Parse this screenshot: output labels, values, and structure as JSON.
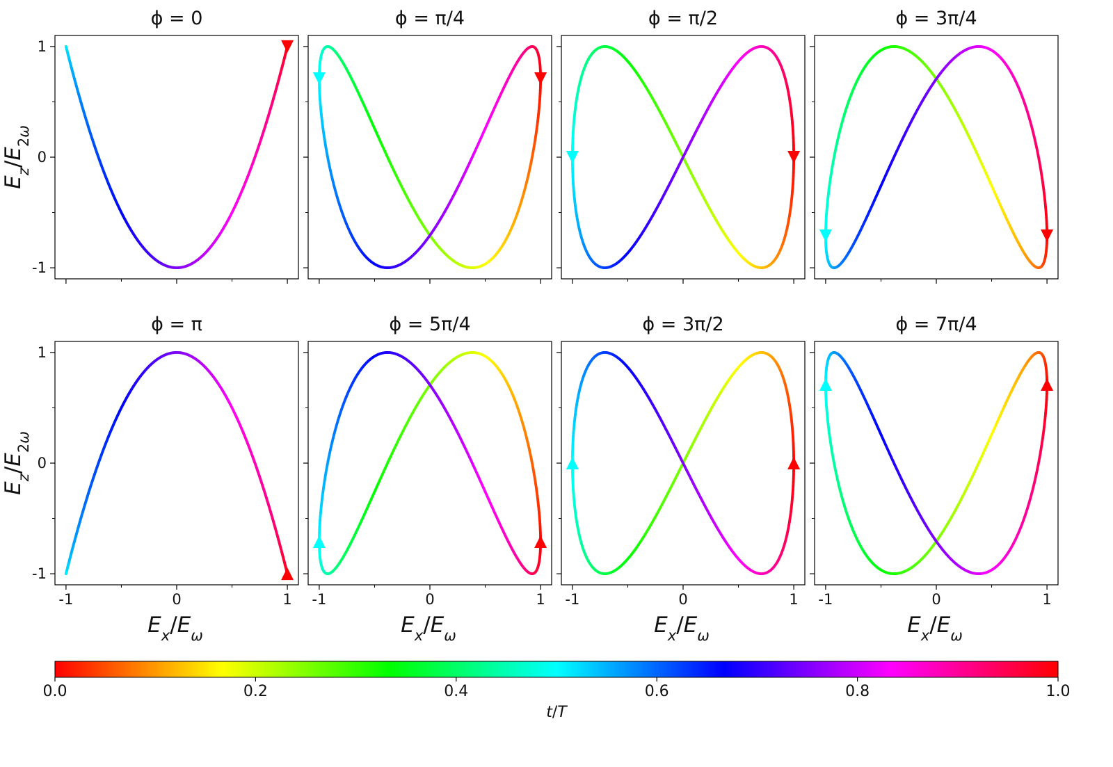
{
  "chart_data": {
    "type": "line",
    "description_colormap": "hsv",
    "panels": [
      {
        "title": "ϕ = 0",
        "phi": 0,
        "direction": "down",
        "arrow_points": [
          [
            1.0,
            1.0
          ]
        ]
      },
      {
        "title": "ϕ = π/4",
        "phi": 0.7853981634,
        "direction": "down",
        "arrow_points": [
          [
            1.0,
            0.71
          ],
          [
            -1.0,
            0.71
          ]
        ]
      },
      {
        "title": "ϕ = π/2",
        "phi": 1.5707963268,
        "direction": "down",
        "arrow_points": [
          [
            1.0,
            0.0
          ],
          [
            -1.0,
            0.0
          ]
        ]
      },
      {
        "title": "ϕ = 3π/4",
        "phi": 2.3561944902,
        "direction": "down",
        "arrow_points": [
          [
            1.0,
            -0.71
          ],
          [
            -1.0,
            -0.71
          ]
        ]
      },
      {
        "title": "ϕ = π",
        "phi": 3.1415926536,
        "direction": "up",
        "arrow_points": [
          [
            1.0,
            -1.0
          ]
        ]
      },
      {
        "title": "ϕ = 5π/4",
        "phi": 3.926990817,
        "direction": "up",
        "arrow_points": [
          [
            1.0,
            -0.71
          ],
          [
            -1.0,
            -0.71
          ]
        ]
      },
      {
        "title": "ϕ = 3π/2",
        "phi": 4.7123889804,
        "direction": "up",
        "arrow_points": [
          [
            1.0,
            0.0
          ],
          [
            -1.0,
            0.0
          ]
        ]
      },
      {
        "title": "ϕ = 7π/4",
        "phi": 5.4977871438,
        "direction": "up",
        "arrow_points": [
          [
            1.0,
            0.71
          ],
          [
            -1.0,
            0.71
          ]
        ]
      }
    ],
    "curve_model": {
      "x": "cos(2π t/T)",
      "y": "cos(4π t/T + ϕ)",
      "t_range": [
        0,
        1
      ]
    },
    "xlim": [
      -1.1,
      1.1
    ],
    "ylim": [
      -1.1,
      1.1
    ],
    "x_ticks": [
      -1,
      0,
      1
    ],
    "x_tick_labels": [
      "-1",
      "0",
      "1"
    ],
    "y_ticks": [
      -1,
      0,
      1
    ],
    "y_tick_labels": [
      "-1",
      "0",
      "1"
    ],
    "xlabel": "E_x/E_ω",
    "ylabel": "E_z/E_2ω",
    "colorbar": {
      "label": "t/T",
      "range": [
        0,
        1
      ],
      "ticks": [
        0.0,
        0.2,
        0.4,
        0.6,
        0.8,
        1.0
      ],
      "tick_labels": [
        "0.0",
        "0.2",
        "0.4",
        "0.6",
        "0.8",
        "1.0"
      ],
      "orientation": "horizontal",
      "placement": "bottom"
    },
    "grid": false
  }
}
